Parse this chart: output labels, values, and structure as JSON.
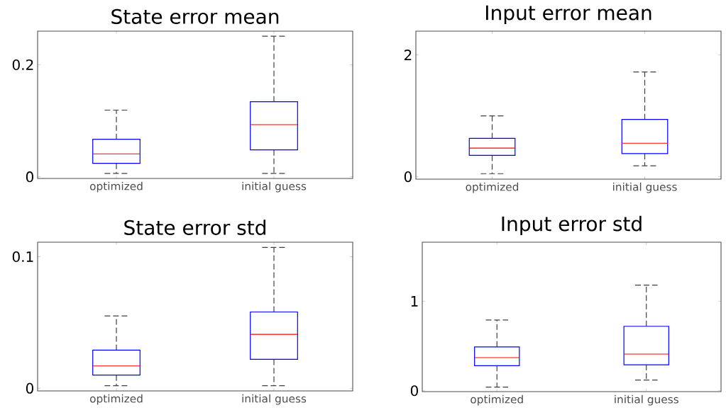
{
  "chart_data": [
    {
      "type": "box",
      "title": "State error mean",
      "categories": [
        "optimized",
        "initial guess"
      ],
      "color": "#0000ff",
      "ylim": [
        -0.003,
        0.26
      ],
      "yticks": [
        0,
        0.2
      ],
      "boxes": [
        {
          "low": 0.006,
          "q1": 0.024,
          "median": 0.041,
          "q3": 0.067,
          "high": 0.119
        },
        {
          "low": 0.006,
          "q1": 0.048,
          "median": 0.093,
          "q3": 0.134,
          "high": 0.251
        }
      ]
    },
    {
      "type": "box",
      "title": "Input error mean",
      "categories": [
        "optimized",
        "initial guess"
      ],
      "color": "#0000ff",
      "ylim": [
        -0.04,
        2.39
      ],
      "yticks": [
        0,
        2
      ],
      "boxes": [
        {
          "low": 0.05,
          "q1": 0.35,
          "median": 0.47,
          "q3": 0.63,
          "high": 1.0
        },
        {
          "low": 0.18,
          "q1": 0.38,
          "median": 0.55,
          "q3": 0.94,
          "high": 1.72
        }
      ]
    },
    {
      "type": "box",
      "title": "State error std",
      "categories": [
        "optimized",
        "initial guess"
      ],
      "color": "#0000ff",
      "ylim": [
        -0.002,
        0.111
      ],
      "yticks": [
        0,
        0.1
      ],
      "boxes": [
        {
          "low": 0.002,
          "q1": 0.01,
          "median": 0.017,
          "q3": 0.029,
          "high": 0.055
        },
        {
          "low": 0.002,
          "q1": 0.022,
          "median": 0.041,
          "q3": 0.058,
          "high": 0.107
        }
      ]
    },
    {
      "type": "box",
      "title": "Input error std",
      "categories": [
        "optimized",
        "initial guess"
      ],
      "color": "#0000ff",
      "ylim": [
        -0.01,
        1.66
      ],
      "yticks": [
        0,
        1
      ],
      "boxes": [
        {
          "low": 0.04,
          "q1": 0.28,
          "median": 0.37,
          "q3": 0.49,
          "high": 0.79
        },
        {
          "low": 0.12,
          "q1": 0.29,
          "median": 0.41,
          "q3": 0.72,
          "high": 1.18
        }
      ]
    }
  ]
}
